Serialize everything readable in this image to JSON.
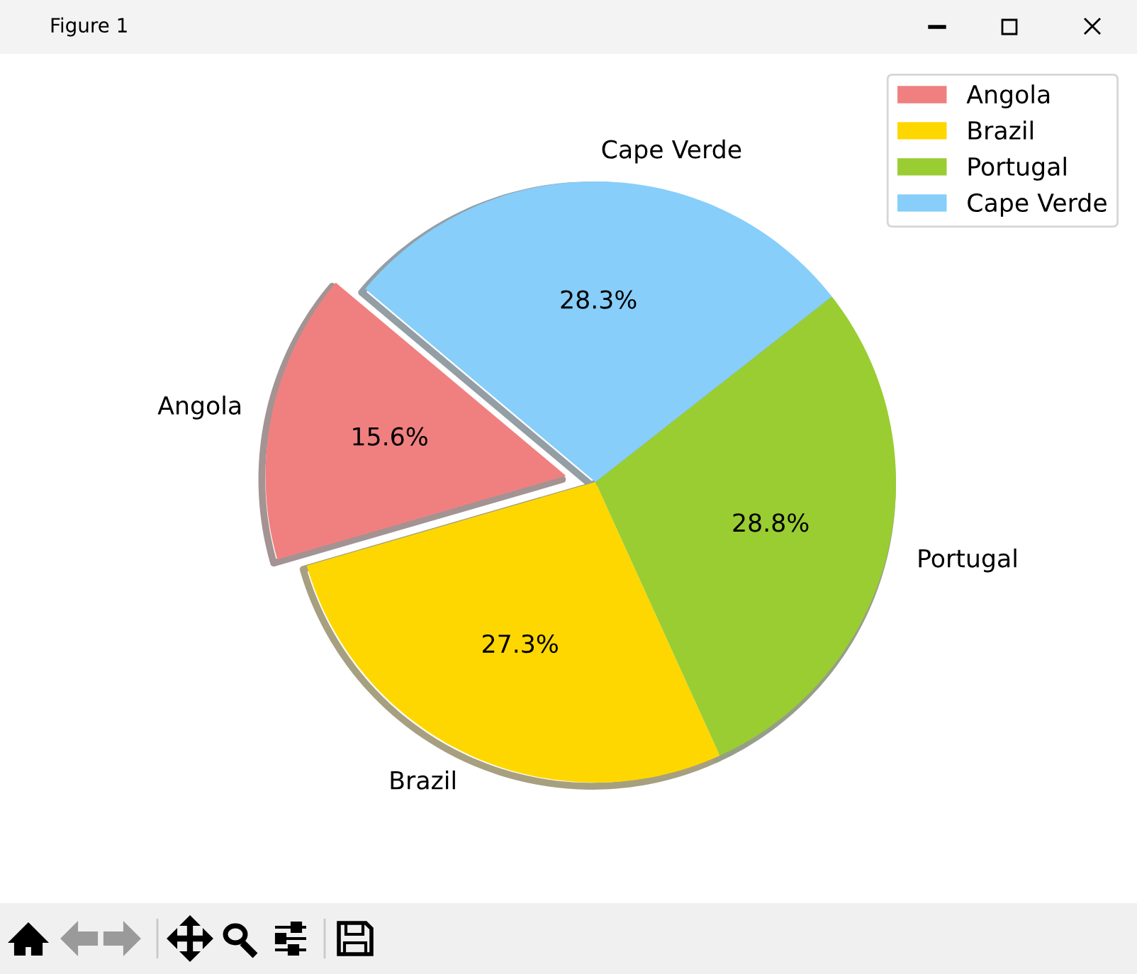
{
  "chart_data": {
    "type": "pie",
    "categories": [
      "Angola",
      "Brazil",
      "Portugal",
      "Cape Verde"
    ],
    "values": [
      15.6,
      27.3,
      28.8,
      28.3
    ],
    "value_labels": [
      "15.6%",
      "27.3%",
      "28.8%",
      "28.3%"
    ],
    "colors": [
      "#f08080",
      "#ffd700",
      "#9acd32",
      "#87cefa"
    ],
    "legend": "top right",
    "annotations": [
      "Figure 1"
    ]
  }
}
